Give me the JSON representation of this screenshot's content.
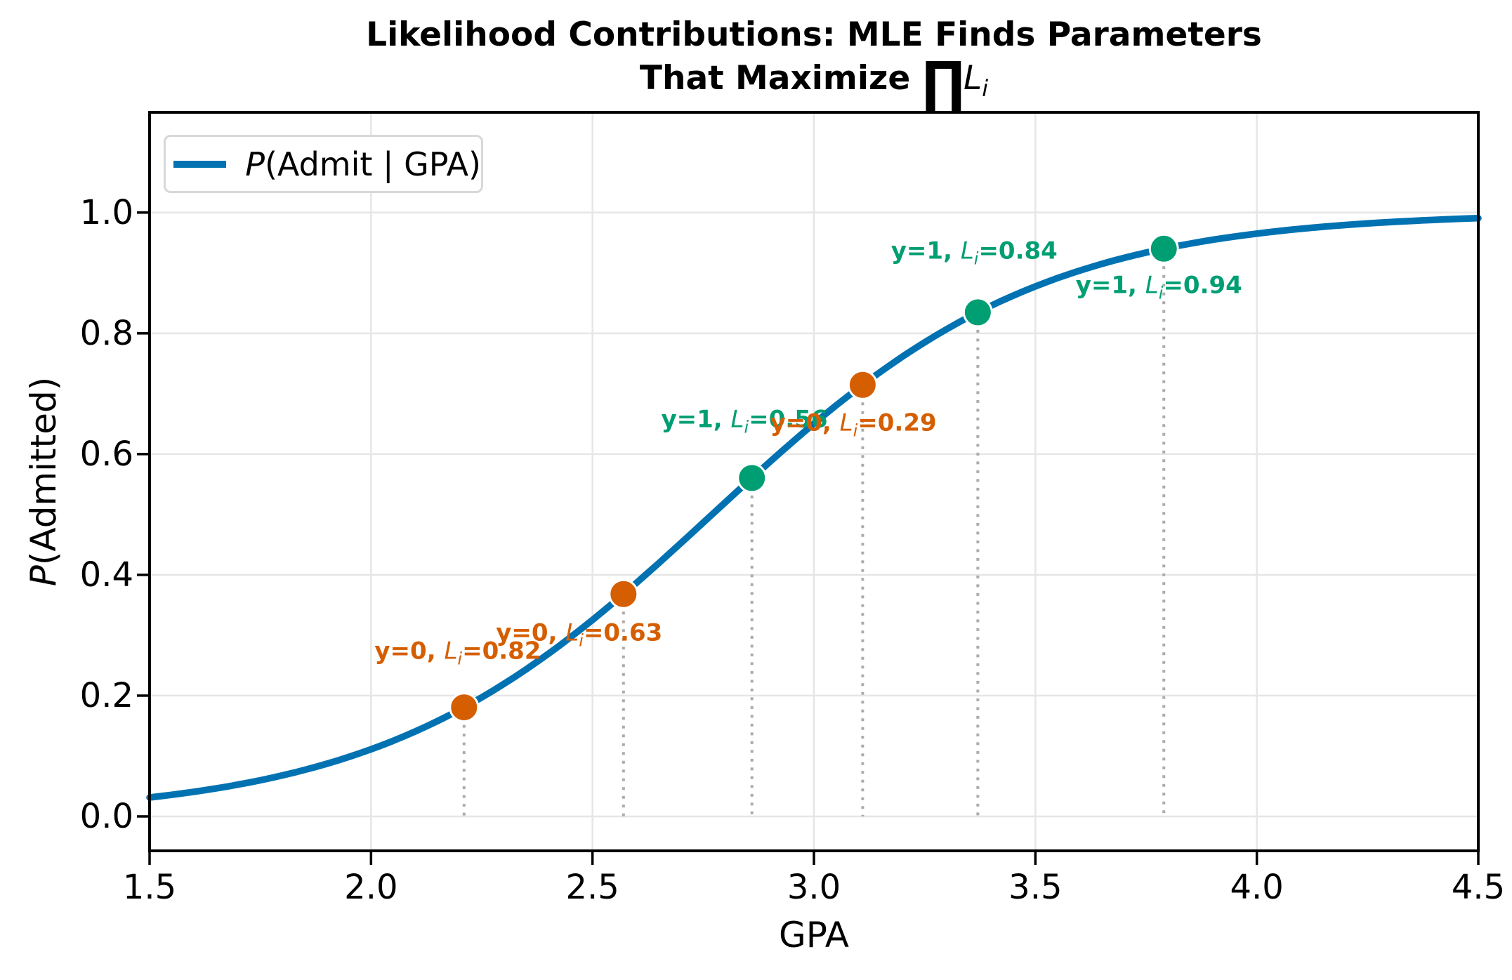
{
  "title": {
    "line1": "Likelihood Contributions: MLE Finds Parameters",
    "line2_prefix": "That Maximize ",
    "product_symbol": "∏",
    "math_var": "L",
    "math_sub": "i"
  },
  "legend": {
    "var": "P",
    "label_rest": "(Admit | GPA)",
    "position": "upper left",
    "line_color": "#0072B2"
  },
  "axes": {
    "xlabel": "GPA",
    "ylabel_var": "P",
    "ylabel_rest": "(Admitted)",
    "x_tick_labels": [
      "1.5",
      "2.0",
      "2.5",
      "3.0",
      "3.5",
      "4.0",
      "4.5"
    ],
    "y_tick_labels": [
      "0.0",
      "0.2",
      "0.4",
      "0.6",
      "0.8",
      "1.0"
    ]
  },
  "colors": {
    "curve": "#0072B2",
    "admitted_green": "#009E73",
    "rejected_orange": "#D55E00",
    "grid": "#e6e6e6",
    "guide": "#ababab",
    "spine": "#000000",
    "legend_border": "#d8d8d8"
  },
  "chart_data": {
    "type": "line",
    "title": "Likelihood Contributions: MLE Finds Parameters That Maximize ∏Li",
    "xlabel": "GPA",
    "ylabel": "P(Admitted)",
    "xlim": [
      1.5,
      4.5
    ],
    "ylim": [
      -0.057,
      1.166
    ],
    "x_ticks": [
      1.5,
      2.0,
      2.5,
      3.0,
      3.5,
      4.0,
      4.5
    ],
    "y_ticks": [
      0.0,
      0.2,
      0.4,
      0.6,
      0.8,
      1.0
    ],
    "grid": true,
    "legend_position": "upper left",
    "series": [
      {
        "name": "P(Admit | GPA)",
        "kind": "logistic-curve",
        "formula": "p = 1 / (1 + exp(-k*(x - x0)))",
        "k": 2.7,
        "x0": 2.77,
        "color": "#0072B2",
        "linewidth": 9.5
      }
    ],
    "points": [
      {
        "gpa": 2.21,
        "y": 0,
        "p_admit": 0.18,
        "likelihood": 0.82,
        "color": "#D55E00",
        "annotation": {
          "prefix": "y=0, ",
          "var": "L",
          "sub": "i",
          "value": "=0.82",
          "x": 2.196,
          "p": 0.267
        }
      },
      {
        "gpa": 2.57,
        "y": 0,
        "p_admit": 0.37,
        "likelihood": 0.63,
        "color": "#D55E00",
        "annotation": {
          "prefix": "y=0, ",
          "var": "L",
          "sub": "i",
          "value": "=0.63",
          "x": 2.47,
          "p": 0.297
        }
      },
      {
        "gpa": 2.86,
        "y": 1,
        "p_admit": 0.56,
        "likelihood": 0.56,
        "color": "#009E73",
        "annotation": {
          "prefix": "y=1, ",
          "var": "L",
          "sub": "i",
          "value": "=0.56",
          "x": 2.843,
          "p": 0.651
        }
      },
      {
        "gpa": 3.11,
        "y": 0,
        "p_admit": 0.71,
        "likelihood": 0.29,
        "color": "#D55E00",
        "annotation": {
          "prefix": "y=0, ",
          "var": "L",
          "sub": "i",
          "value": "=0.29",
          "x": 3.089,
          "p": 0.645
        }
      },
      {
        "gpa": 3.37,
        "y": 1,
        "p_admit": 0.84,
        "likelihood": 0.84,
        "color": "#009E73",
        "annotation": {
          "prefix": "y=1, ",
          "var": "L",
          "sub": "i",
          "value": "=0.84",
          "x": 3.362,
          "p": 0.93
        }
      },
      {
        "gpa": 3.79,
        "y": 1,
        "p_admit": 0.94,
        "likelihood": 0.94,
        "color": "#009E73",
        "annotation": {
          "prefix": "y=1, ",
          "var": "L",
          "sub": "i",
          "value": "=0.94",
          "x": 3.779,
          "p": 0.873
        }
      }
    ],
    "guide_lines": {
      "style": "dotted",
      "from_p": 0.0,
      "color": "#ababab"
    }
  }
}
